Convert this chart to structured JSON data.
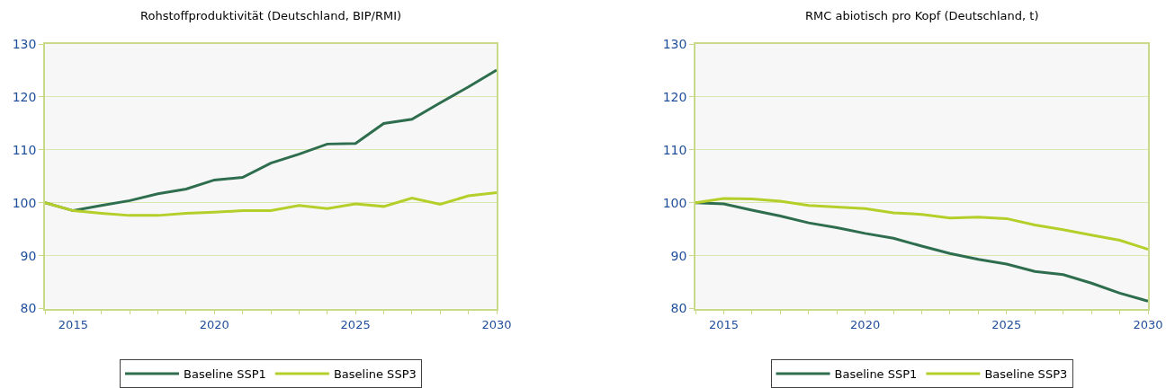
{
  "chart_data": [
    {
      "type": "line",
      "title": "Rohstoffproduktivität (Deutschland, BIP/RMI)",
      "x": [
        2014,
        2015,
        2016,
        2017,
        2018,
        2019,
        2020,
        2021,
        2022,
        2023,
        2024,
        2025,
        2026,
        2027,
        2028,
        2029,
        2030
      ],
      "series": [
        {
          "name": "Baseline SSP1",
          "color": "#2e6e4e",
          "values": [
            100,
            98.5,
            99.5,
            100.4,
            101.7,
            102.6,
            104.3,
            104.8,
            107.5,
            109.2,
            111.1,
            111.2,
            115.0,
            115.8,
            118.9,
            121.9,
            125.1
          ]
        },
        {
          "name": "Baseline SSP3",
          "color": "#b5cf2a",
          "values": [
            100,
            98.5,
            98.0,
            97.6,
            97.6,
            98.0,
            98.2,
            98.5,
            98.5,
            99.5,
            98.9,
            99.8,
            99.3,
            100.9,
            99.7,
            101.3,
            101.9
          ]
        }
      ],
      "xlim": [
        2014,
        2030
      ],
      "xticks": [
        {
          "value": 2014,
          "label": null
        },
        2015,
        {
          "value": 2016,
          "label": null
        },
        {
          "value": 2017,
          "label": null
        },
        {
          "value": 2018,
          "label": null
        },
        {
          "value": 2019,
          "label": null
        },
        2020,
        {
          "value": 2021,
          "label": null
        },
        {
          "value": 2022,
          "label": null
        },
        {
          "value": 2023,
          "label": null
        },
        {
          "value": 2024,
          "label": null
        },
        2025,
        {
          "value": 2026,
          "label": null
        },
        {
          "value": 2027,
          "label": null
        },
        {
          "value": 2028,
          "label": null
        },
        {
          "value": 2029,
          "label": null
        },
        2030
      ],
      "ylim": [
        80,
        130
      ],
      "yticks": [
        80,
        90,
        100,
        110,
        120,
        130
      ],
      "grid": "y",
      "legend": "bottom",
      "marker": "none",
      "line_style": "solid"
    },
    {
      "type": "line",
      "title": "RMC abiotisch pro Kopf (Deutschland, t)",
      "x": [
        2014,
        2015,
        2016,
        2017,
        2018,
        2019,
        2020,
        2021,
        2022,
        2023,
        2024,
        2025,
        2026,
        2027,
        2028,
        2029,
        2030
      ],
      "series": [
        {
          "name": "Baseline SSP1",
          "color": "#2e6e4e",
          "values": [
            100,
            99.8,
            98.6,
            97.5,
            96.2,
            95.3,
            94.2,
            93.3,
            91.8,
            90.4,
            89.3,
            88.4,
            87.0,
            86.4,
            84.8,
            82.9,
            81.4
          ]
        },
        {
          "name": "Baseline SSP3",
          "color": "#b5cf2a",
          "values": [
            100,
            100.8,
            100.7,
            100.3,
            99.5,
            99.2,
            98.9,
            98.1,
            97.8,
            97.1,
            97.3,
            97.0,
            95.8,
            94.9,
            93.9,
            92.9,
            91.2
          ]
        }
      ],
      "xlim": [
        2014,
        2030
      ],
      "xticks": [
        {
          "value": 2014,
          "label": null
        },
        2015,
        {
          "value": 2016,
          "label": null
        },
        {
          "value": 2017,
          "label": null
        },
        {
          "value": 2018,
          "label": null
        },
        {
          "value": 2019,
          "label": null
        },
        2020,
        {
          "value": 2021,
          "label": null
        },
        {
          "value": 2022,
          "label": null
        },
        {
          "value": 2023,
          "label": null
        },
        {
          "value": 2024,
          "label": null
        },
        2025,
        {
          "value": 2026,
          "label": null
        },
        {
          "value": 2027,
          "label": null
        },
        {
          "value": 2028,
          "label": null
        },
        {
          "value": 2029,
          "label": null
        },
        2030
      ],
      "ylim": [
        80,
        130
      ],
      "yticks": [
        80,
        90,
        100,
        110,
        120,
        130
      ],
      "grid": "y",
      "legend": "bottom",
      "marker": "none",
      "line_style": "solid"
    }
  ]
}
